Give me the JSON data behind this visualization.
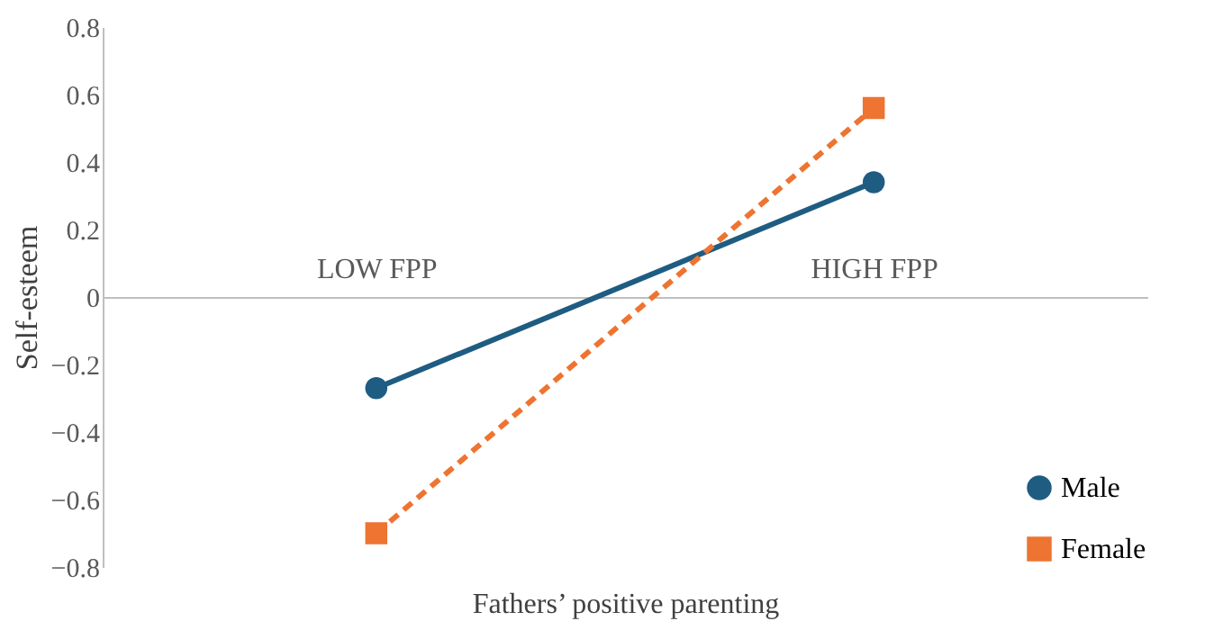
{
  "chart_data": {
    "type": "line",
    "xlabel": "Fathers’ positive parenting",
    "ylabel": "Self-esteem",
    "categories": [
      "LOW FPP",
      "HIGH FPP"
    ],
    "series": [
      {
        "name": "Male",
        "color": "#1f5c82",
        "values": [
          -0.27,
          0.34
        ],
        "marker": "circle",
        "line_style": "solid"
      },
      {
        "name": "Female",
        "color": "#ed7431",
        "values": [
          -0.7,
          0.56
        ],
        "marker": "square",
        "line_style": "dashed"
      }
    ],
    "ylim": [
      -0.8,
      0.8
    ],
    "yticks": [
      -0.8,
      -0.6,
      -0.4,
      -0.2,
      0,
      0.2,
      0.4,
      0.6,
      0.8
    ],
    "grid": false,
    "legend": "bottom right"
  }
}
